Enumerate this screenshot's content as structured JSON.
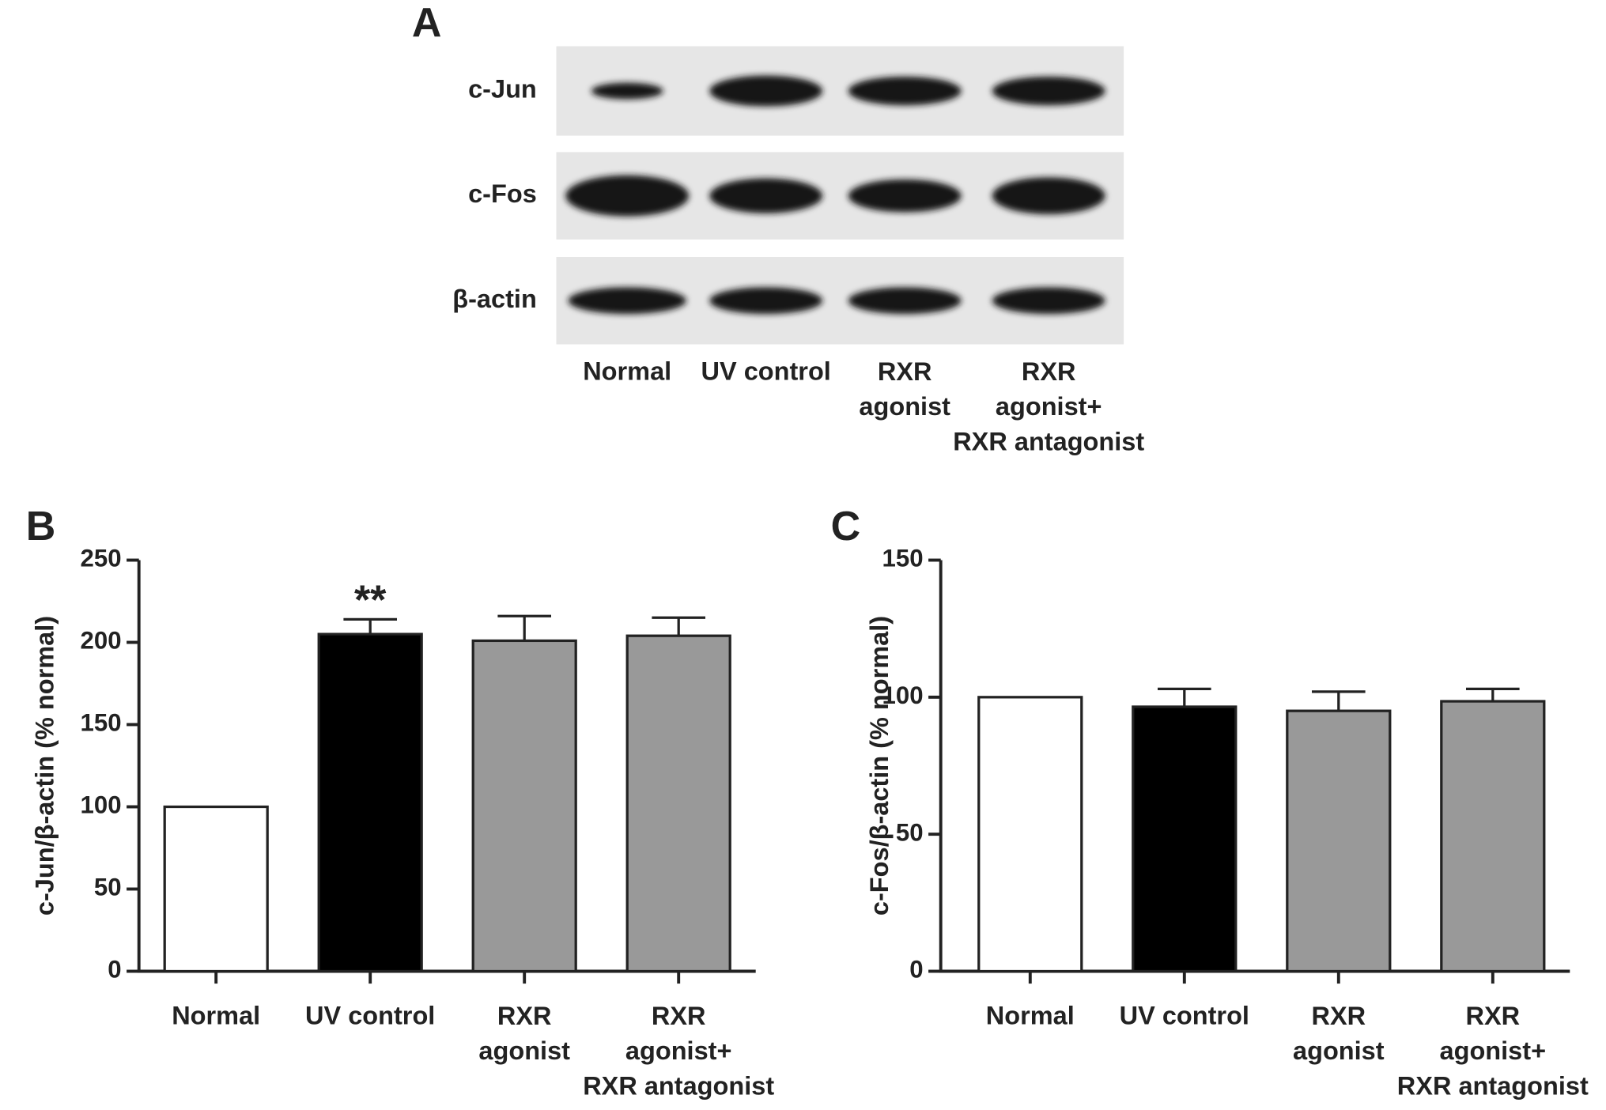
{
  "panel_a": {
    "label": "A",
    "rows": [
      "c-Jun",
      "c-Fos",
      "β-actin"
    ],
    "lanes": [
      "Normal",
      "UV control",
      "RXR\nagonist",
      "RXR\nagonist+\nRXR antagonist"
    ]
  },
  "chart_data": [
    {
      "type": "bar",
      "panel_label": "B",
      "y_label": "c-Jun/β-actin (% normal)",
      "categories": [
        "Normal",
        "UV control",
        "RXR\nagonist",
        "RXR\nagonist+\nRXR antagonist"
      ],
      "values": [
        100,
        205,
        201,
        204
      ],
      "errors": [
        null,
        9,
        15,
        11
      ],
      "colors": [
        "#ffffff",
        "#000000",
        "#999999",
        "#999999"
      ],
      "annotations": [
        {
          "category": "UV control",
          "text": "**"
        }
      ],
      "ylim": [
        0,
        250
      ],
      "yticks": [
        0,
        50,
        100,
        150,
        200,
        250
      ]
    },
    {
      "type": "bar",
      "panel_label": "C",
      "y_label": "c-Fos/β-actin (% normal)",
      "categories": [
        "Normal",
        "UV control",
        "RXR\nagonist",
        "RXR\nagonist+\nRXR antagonist"
      ],
      "values": [
        100,
        96.5,
        95,
        98.5
      ],
      "errors": [
        null,
        6.5,
        7,
        4.5
      ],
      "colors": [
        "#ffffff",
        "#000000",
        "#999999",
        "#999999"
      ],
      "annotations": [],
      "ylim": [
        0,
        150
      ],
      "yticks": [
        0,
        50,
        100,
        150
      ]
    }
  ]
}
